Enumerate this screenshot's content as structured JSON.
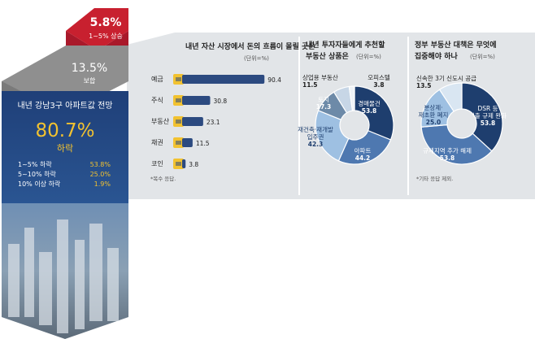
{
  "colors": {
    "red": "#c8202f",
    "gray": "#8f8f8f",
    "navy": "#1f3f78",
    "bar": "#2c4a80",
    "gold": "#f2c230",
    "panel": "#e2e5e8",
    "pie_dark": "#1e3e6e",
    "pie_mid": "#4e78b0",
    "pie_light": "#9ec0e2",
    "pie_pale": "#d9e6f2"
  },
  "left_panel": {
    "top_value": "5.8%",
    "top_label": "1~5% 상승",
    "mid_value": "13.5%",
    "mid_label": "보합",
    "title": "내년 강남3구 아파트값 전망",
    "big_value": "80.7%",
    "big_label": "하락",
    "breakdown": [
      {
        "label": "1~5% 하락",
        "value": "53.8%"
      },
      {
        "label": "5~10% 하락",
        "value": "25.0%"
      },
      {
        "label": "10% 이상 하락",
        "value": "1.9%"
      }
    ]
  },
  "chart_data": [
    {
      "type": "bar",
      "title": "내년 자산 시장에서 돈의 흐름이 몰릴 곳은",
      "unit": "(단위=%)",
      "categories": [
        "예금",
        "주식",
        "부동산",
        "채권",
        "코인"
      ],
      "icons": [
        "money-bill-icon",
        "stock-chart-icon",
        "building-icon",
        "document-icon",
        "bitcoin-icon"
      ],
      "values": [
        90.4,
        30.8,
        23.1,
        11.5,
        3.8
      ],
      "value_labels": [
        "90.4",
        "30.8",
        "23.1",
        "11.5",
        "3.8"
      ],
      "note": "*복수 응답.",
      "ylim": [
        0,
        100
      ]
    },
    {
      "type": "pie",
      "title_line1": "내년 투자자들에게 추천할",
      "title_line2": "부동산 상품은",
      "unit": "(단위=%)",
      "slices": [
        {
          "label": "경매물건",
          "value": 53.8,
          "value_label": "53.8"
        },
        {
          "label": "아파트",
          "value": 44.2,
          "value_label": "44.2"
        },
        {
          "label": "재건축·재개발 입주권",
          "value": 42.3,
          "value_label": "42.3"
        },
        {
          "label": "토지",
          "value": 17.3,
          "value_label": "17.3"
        },
        {
          "label": "상업용 부동산",
          "value": 11.5,
          "value_label": "11.5"
        },
        {
          "label": "오피스텔",
          "value": 3.8,
          "value_label": "3.8"
        }
      ]
    },
    {
      "type": "pie",
      "title_line1": "정부 부동산 대책은 무엇에",
      "title_line2": "집중해야 하나",
      "unit": "(단위=%)",
      "slices": [
        {
          "label": "DSR 등 대출 규제 완화",
          "value": 53.8,
          "value_label": "53.8"
        },
        {
          "label": "규제지역 추가 해제",
          "value": 53.8,
          "value_label": "53.8"
        },
        {
          "label": "분상제·재초환 폐지",
          "value": 25.0,
          "value_label": "25.0"
        },
        {
          "label": "신속한 3기 신도시 공급",
          "value": 13.5,
          "value_label": "13.5"
        }
      ],
      "note": "*기타 응답 제외."
    }
  ]
}
